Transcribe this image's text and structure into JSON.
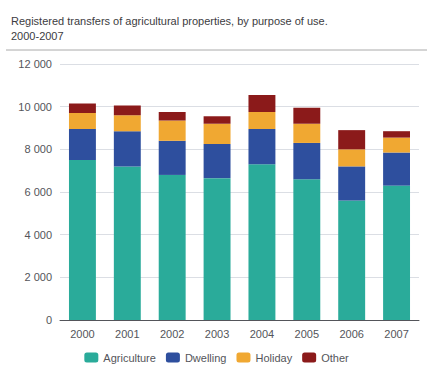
{
  "chart_data": {
    "type": "bar",
    "stacked": true,
    "title": "Registered transfers of agricultural properties, by purpose of use.\n2000-2007",
    "categories": [
      "2000",
      "2001",
      "2002",
      "2003",
      "2004",
      "2005",
      "2006",
      "2007"
    ],
    "series": [
      {
        "name": "Agriculture",
        "color": "#2aab9a",
        "values": [
          7500,
          7200,
          6800,
          6650,
          7300,
          6600,
          5600,
          6300
        ]
      },
      {
        "name": "Dwelling",
        "color": "#2e4f9e",
        "values": [
          1450,
          1650,
          1600,
          1600,
          1650,
          1700,
          1600,
          1550
        ]
      },
      {
        "name": "Holiday",
        "color": "#f0a832",
        "values": [
          750,
          750,
          950,
          950,
          800,
          900,
          800,
          700
        ]
      },
      {
        "name": "Other",
        "color": "#8b1a1a",
        "values": [
          450,
          450,
          400,
          350,
          800,
          750,
          900,
          300
        ]
      }
    ],
    "ylim": [
      0,
      12000
    ],
    "yticks": [
      0,
      {
        "value": 2000,
        "label": "2 000"
      },
      {
        "value": 4000,
        "label": "4 000"
      },
      {
        "value": 6000,
        "label": "6 000"
      },
      {
        "value": 8000,
        "label": "8 000"
      },
      {
        "value": 10000,
        "label": "10 000"
      },
      {
        "value": 12000,
        "label": "12 000"
      }
    ],
    "grid": true,
    "legend": "bottom"
  }
}
